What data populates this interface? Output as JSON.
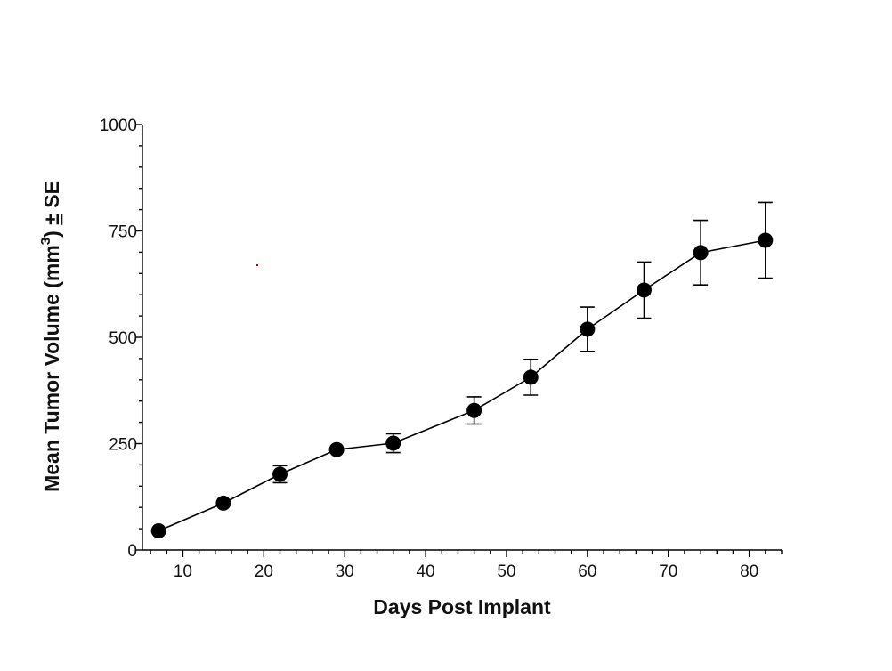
{
  "chart_data": {
    "type": "line",
    "title": "",
    "xlabel": "Days Post Implant",
    "ylabel": {
      "main": "Mean Tumor Volume (mm",
      "superscript": "3",
      "suffix": ") ",
      "pm": "±",
      "se": " SE"
    },
    "xlim": [
      5,
      84
    ],
    "ylim": [
      0,
      1000
    ],
    "x_ticks": [
      10,
      20,
      30,
      40,
      50,
      60,
      70,
      80
    ],
    "y_ticks": [
      0,
      250,
      500,
      750,
      1000
    ],
    "series": [
      {
        "name": "Mean Tumor Volume",
        "color": "#000000",
        "x": [
          7,
          15,
          22,
          29,
          36,
          46,
          53,
          60,
          67,
          74,
          82
        ],
        "y": [
          45,
          110,
          178,
          236,
          251,
          328,
          406,
          519,
          611,
          699,
          728
        ],
        "err": [
          0,
          0,
          20,
          0,
          22,
          32,
          42,
          52,
          66,
          76,
          89
        ]
      }
    ],
    "grid": false,
    "legend": "none"
  }
}
